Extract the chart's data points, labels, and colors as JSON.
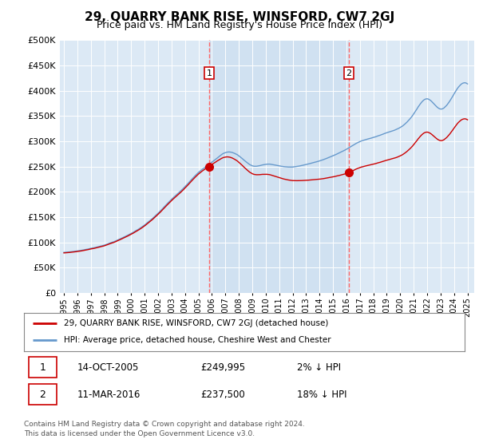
{
  "title": "29, QUARRY BANK RISE, WINSFORD, CW7 2GJ",
  "subtitle": "Price paid vs. HM Land Registry's House Price Index (HPI)",
  "ylim": [
    0,
    500000
  ],
  "yticks": [
    0,
    50000,
    100000,
    150000,
    200000,
    250000,
    300000,
    350000,
    400000,
    450000,
    500000
  ],
  "sale1_date": "14-OCT-2005",
  "sale1_price": 249995,
  "sale1_label": "1",
  "sale1_pct": "2% ↓ HPI",
  "sale2_date": "11-MAR-2016",
  "sale2_price": 237500,
  "sale2_label": "2",
  "sale2_pct": "18% ↓ HPI",
  "legend_property": "29, QUARRY BANK RISE, WINSFORD, CW7 2GJ (detached house)",
  "legend_hpi": "HPI: Average price, detached house, Cheshire West and Chester",
  "footer": "Contains HM Land Registry data © Crown copyright and database right 2024.\nThis data is licensed under the Open Government Licence v3.0.",
  "property_line_color": "#cc0000",
  "hpi_line_color": "#6699cc",
  "sale_marker_color": "#cc0000",
  "vline_color": "#ff6666",
  "plot_bg_color": "#dce9f5",
  "shade_color": "#ccdff0",
  "x_start_year": 1995,
  "x_end_year": 2025,
  "sale1_x": 2005.79,
  "sale2_x": 2016.19
}
